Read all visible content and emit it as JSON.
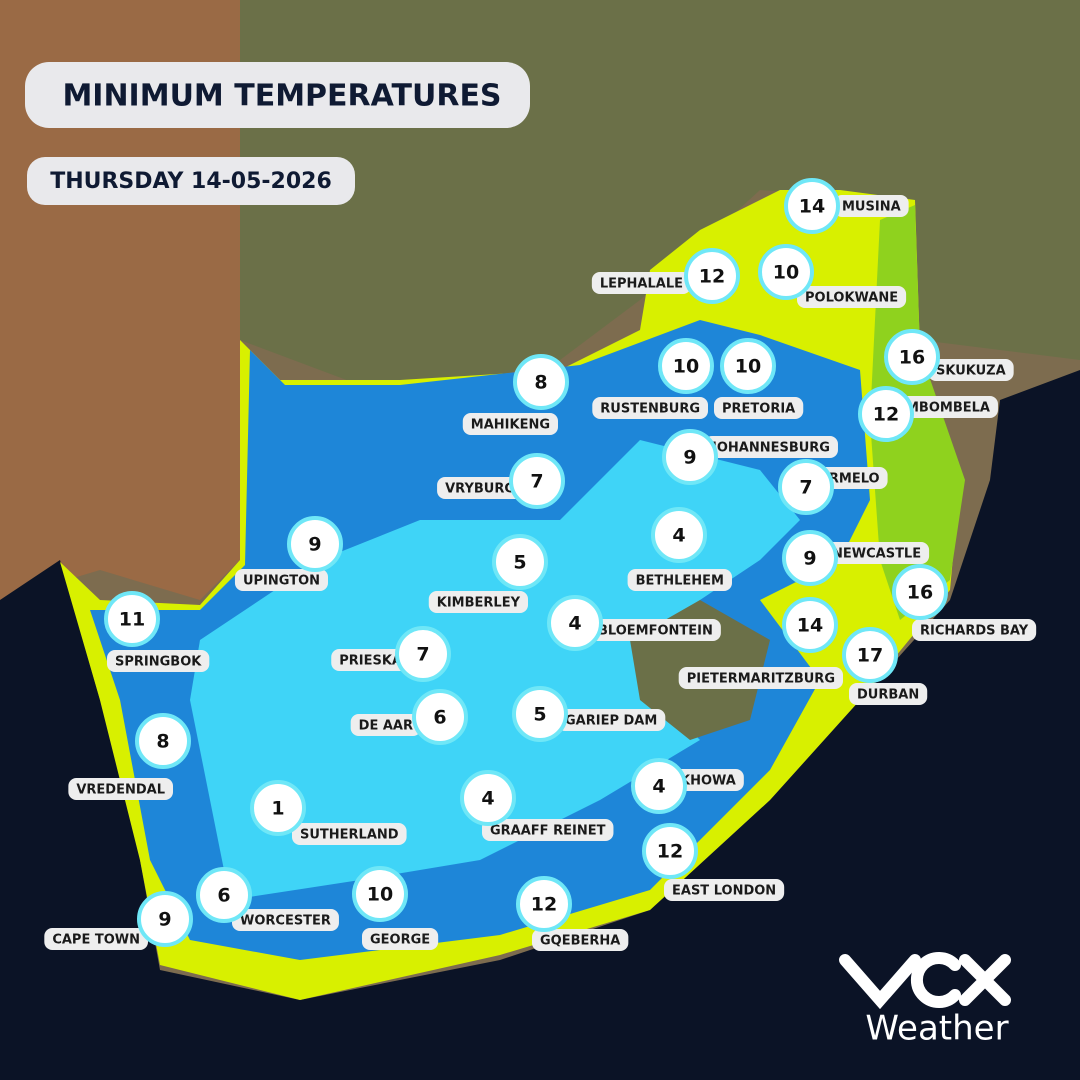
{
  "header": {
    "title": "MINIMUM TEMPERATURES",
    "date": "THURSDAY 14-05-2026"
  },
  "cities": [
    {
      "name": "MUSINA",
      "temp": 14
    },
    {
      "name": "LEPHALALE",
      "temp": 12
    },
    {
      "name": "POLOKWANE",
      "temp": 10
    },
    {
      "name": "RUSTENBURG",
      "temp": 10
    },
    {
      "name": "PRETORIA",
      "temp": 10
    },
    {
      "name": "SKUKUZA",
      "temp": 16
    },
    {
      "name": "MAHIKENG",
      "temp": 8
    },
    {
      "name": "MBOMBELA",
      "temp": 12
    },
    {
      "name": "JOHANNESBURG",
      "temp": 9
    },
    {
      "name": "ERMELO",
      "temp": 7
    },
    {
      "name": "VRYBURG",
      "temp": 7
    },
    {
      "name": "UPINGTON",
      "temp": 9
    },
    {
      "name": "BETHLEHEM",
      "temp": 4
    },
    {
      "name": "NEWCASTLE",
      "temp": 9
    },
    {
      "name": "KIMBERLEY",
      "temp": 5
    },
    {
      "name": "RICHARDS BAY",
      "temp": 16
    },
    {
      "name": "SPRINGBOK",
      "temp": 11
    },
    {
      "name": "BLOEMFONTEIN",
      "temp": 4
    },
    {
      "name": "PIETERMARITZBURG",
      "temp": 14
    },
    {
      "name": "PRIESKA",
      "temp": 7
    },
    {
      "name": "DURBAN",
      "temp": 17
    },
    {
      "name": "DE AAR",
      "temp": 6
    },
    {
      "name": "GARIEP DAM",
      "temp": 5
    },
    {
      "name": "VREDENDAL",
      "temp": 8
    },
    {
      "name": "KHOWA",
      "temp": 4
    },
    {
      "name": "GRAAFF REINET",
      "temp": 4
    },
    {
      "name": "SUTHERLAND",
      "temp": 1
    },
    {
      "name": "EAST LONDON",
      "temp": 12
    },
    {
      "name": "WORCESTER",
      "temp": 6
    },
    {
      "name": "GEORGE",
      "temp": 10
    },
    {
      "name": "GQEBERHA",
      "temp": 12
    },
    {
      "name": "CAPE TOWN",
      "temp": 9
    }
  ],
  "logo": {
    "text": "Weather"
  }
}
